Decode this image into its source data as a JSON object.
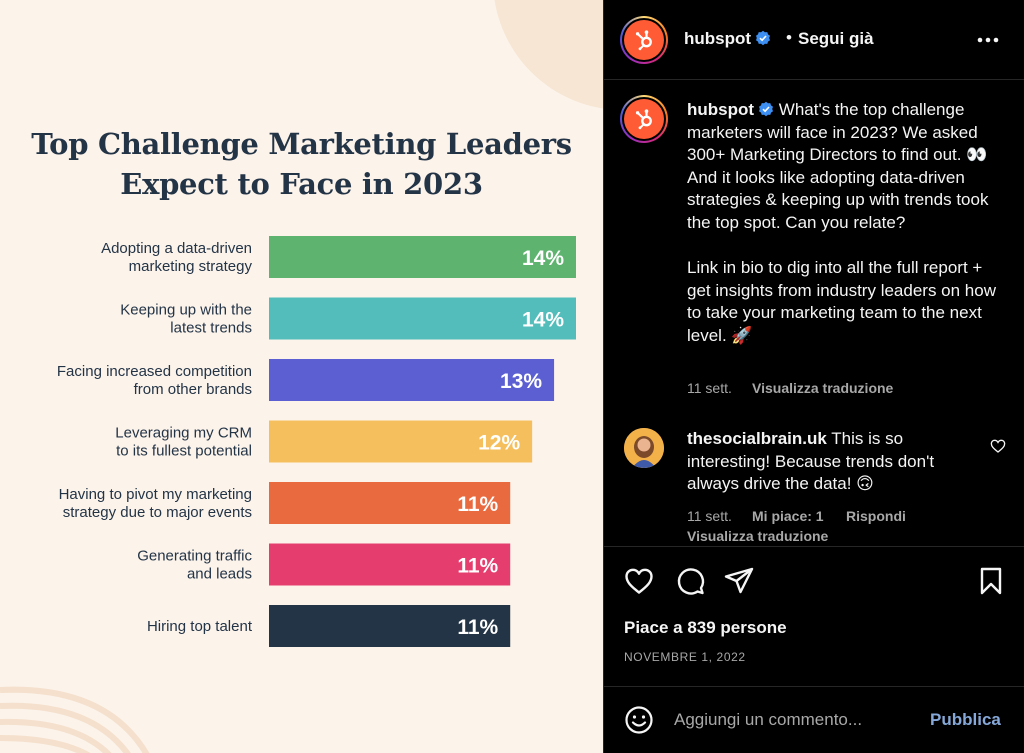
{
  "infographic": {
    "title_line1": "Top Challenge Marketing Leaders",
    "title_line2": "Expect to Face in 2023"
  },
  "chart_data": {
    "type": "bar",
    "orientation": "horizontal",
    "title": "Top Challenge Marketing Leaders Expect to Face in 2023",
    "categories": [
      [
        "Adopting a data-driven",
        "marketing strategy"
      ],
      [
        "Keeping up with the",
        "latest trends"
      ],
      [
        "Facing increased competition",
        "from other brands"
      ],
      [
        "Leveraging my CRM",
        "to its fullest potential"
      ],
      [
        "Having to pivot my marketing",
        "strategy due to major events"
      ],
      [
        "Generating traffic",
        "and leads"
      ],
      [
        "Hiring top talent"
      ]
    ],
    "values": [
      14,
      14,
      13,
      12,
      11,
      11,
      11
    ],
    "value_labels": [
      "14%",
      "14%",
      "13%",
      "12%",
      "11%",
      "11%",
      "11%"
    ],
    "colors": [
      "#5eb36f",
      "#52bdbb",
      "#5b5fd1",
      "#f6bf5e",
      "#ea6a3f",
      "#e53d6e",
      "#233447"
    ],
    "xlim": [
      0,
      14
    ],
    "grid": false,
    "legend": "none"
  },
  "header": {
    "username": "hubspot",
    "separator": "•",
    "follow_status": "Segui già"
  },
  "caption": {
    "username": "hubspot",
    "paragraph1": "What's the top challenge marketers will face in 2023? We asked 300+ Marketing Directors to find out. 👀 And it looks like adopting data-driven strategies & keeping up with trends took the top spot. Can you relate?",
    "paragraph2": "Link in bio to dig into all the full report + get insights from industry leaders on how to take your marketing team to the next level. 🚀",
    "time": "11 sett.",
    "translate": "Visualizza traduzione"
  },
  "comment": {
    "username": "thesocialbrain.uk",
    "text": "This is so interesting! Because trends don't always drive the data! 🙃",
    "time": "11 sett.",
    "likes": "Mi piace: 1",
    "reply": "Rispondi",
    "translate": "Visualizza traduzione"
  },
  "actions": {
    "likes_text": "Piace a 839 persone",
    "date": "NOVEMBRE 1, 2022"
  },
  "composer": {
    "placeholder": "Aggiungi un commento...",
    "publish": "Pubblica"
  },
  "icons": {
    "like": "heart-icon",
    "comment": "comment-icon",
    "share": "share-icon",
    "save": "bookmark-icon",
    "more": "more-icon",
    "emoji": "emoji-icon",
    "verified": "verified-badge-icon"
  }
}
